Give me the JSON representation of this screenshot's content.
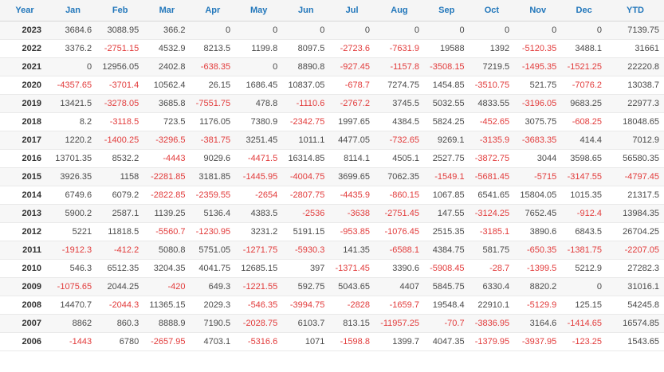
{
  "colors": {
    "header_text": "#2277bb",
    "negative_value": "#e23b3b",
    "positive_value": "#4a4a4a",
    "header_background": "#f5f5f5",
    "stripe_background": "#f7f7f7"
  },
  "table": {
    "columns": [
      "Year",
      "Jan",
      "Feb",
      "Mar",
      "Apr",
      "May",
      "Jun",
      "Jul",
      "Aug",
      "Sep",
      "Oct",
      "Nov",
      "Dec",
      "YTD"
    ],
    "rows": [
      {
        "year": "2023",
        "values": [
          "3684.6",
          "3088.95",
          "366.2",
          "0",
          "0",
          "0",
          "0",
          "0",
          "0",
          "0",
          "0",
          "0",
          "7139.75"
        ]
      },
      {
        "year": "2022",
        "values": [
          "3376.2",
          "-2751.15",
          "4532.9",
          "8213.5",
          "1199.8",
          "8097.5",
          "-2723.6",
          "-7631.9",
          "19588",
          "1392",
          "-5120.35",
          "3488.1",
          "31661"
        ]
      },
      {
        "year": "2021",
        "values": [
          "0",
          "12956.05",
          "2402.8",
          "-638.35",
          "0",
          "8890.8",
          "-927.45",
          "-1157.8",
          "-3508.15",
          "7219.5",
          "-1495.35",
          "-1521.25",
          "22220.8"
        ]
      },
      {
        "year": "2020",
        "values": [
          "-4357.65",
          "-3701.4",
          "10562.4",
          "26.15",
          "1686.45",
          "10837.05",
          "-678.7",
          "7274.75",
          "1454.85",
          "-3510.75",
          "521.75",
          "-7076.2",
          "13038.7"
        ]
      },
      {
        "year": "2019",
        "values": [
          "13421.5",
          "-3278.05",
          "3685.8",
          "-7551.75",
          "478.8",
          "-1110.6",
          "-2767.2",
          "3745.5",
          "5032.55",
          "4833.55",
          "-3196.05",
          "9683.25",
          "22977.3"
        ]
      },
      {
        "year": "2018",
        "values": [
          "8.2",
          "-3118.5",
          "723.5",
          "1176.05",
          "7380.9",
          "-2342.75",
          "1997.65",
          "4384.5",
          "5824.25",
          "-452.65",
          "3075.75",
          "-608.25",
          "18048.65"
        ]
      },
      {
        "year": "2017",
        "values": [
          "1220.2",
          "-1400.25",
          "-3296.5",
          "-381.75",
          "3251.45",
          "1011.1",
          "4477.05",
          "-732.65",
          "9269.1",
          "-3135.9",
          "-3683.35",
          "414.4",
          "7012.9"
        ]
      },
      {
        "year": "2016",
        "values": [
          "13701.35",
          "8532.2",
          "-4443",
          "9029.6",
          "-4471.5",
          "16314.85",
          "8114.1",
          "4505.1",
          "2527.75",
          "-3872.75",
          "3044",
          "3598.65",
          "56580.35"
        ]
      },
      {
        "year": "2015",
        "values": [
          "3926.35",
          "1158",
          "-2281.85",
          "3181.85",
          "-1445.95",
          "-4004.75",
          "3699.65",
          "7062.35",
          "-1549.1",
          "-5681.45",
          "-5715",
          "-3147.55",
          "-4797.45"
        ]
      },
      {
        "year": "2014",
        "values": [
          "6749.6",
          "6079.2",
          "-2822.85",
          "-2359.55",
          "-2654",
          "-2807.75",
          "-4435.9",
          "-860.15",
          "1067.85",
          "6541.65",
          "15804.05",
          "1015.35",
          "21317.5"
        ]
      },
      {
        "year": "2013",
        "values": [
          "5900.2",
          "2587.1",
          "1139.25",
          "5136.4",
          "4383.5",
          "-2536",
          "-3638",
          "-2751.45",
          "147.55",
          "-3124.25",
          "7652.45",
          "-912.4",
          "13984.35"
        ]
      },
      {
        "year": "2012",
        "values": [
          "5221",
          "11818.5",
          "-5560.7",
          "-1230.95",
          "3231.2",
          "5191.15",
          "-953.85",
          "-1076.45",
          "2515.35",
          "-3185.1",
          "3890.6",
          "6843.5",
          "26704.25"
        ]
      },
      {
        "year": "2011",
        "values": [
          "-1912.3",
          "-412.2",
          "5080.8",
          "5751.05",
          "-1271.75",
          "-5930.3",
          "141.35",
          "-6588.1",
          "4384.75",
          "581.75",
          "-650.35",
          "-1381.75",
          "-2207.05"
        ]
      },
      {
        "year": "2010",
        "values": [
          "546.3",
          "6512.35",
          "3204.35",
          "4041.75",
          "12685.15",
          "397",
          "-1371.45",
          "3390.6",
          "-5908.45",
          "-28.7",
          "-1399.5",
          "5212.9",
          "27282.3"
        ]
      },
      {
        "year": "2009",
        "values": [
          "-1075.65",
          "2044.25",
          "-420",
          "649.3",
          "-1221.55",
          "592.75",
          "5043.65",
          "4407",
          "5845.75",
          "6330.4",
          "8820.2",
          "0",
          "31016.1"
        ]
      },
      {
        "year": "2008",
        "values": [
          "14470.7",
          "-2044.3",
          "11365.15",
          "2029.3",
          "-546.35",
          "-3994.75",
          "-2828",
          "-1659.7",
          "19548.4",
          "22910.1",
          "-5129.9",
          "125.15",
          "54245.8"
        ]
      },
      {
        "year": "2007",
        "values": [
          "8862",
          "860.3",
          "8888.9",
          "7190.5",
          "-2028.75",
          "6103.7",
          "813.15",
          "-11957.25",
          "-70.7",
          "-3836.95",
          "3164.6",
          "-1414.65",
          "16574.85"
        ]
      },
      {
        "year": "2006",
        "values": [
          "-1443",
          "6780",
          "-2657.95",
          "4703.1",
          "-5316.6",
          "1071",
          "-1598.8",
          "1399.7",
          "4047.35",
          "-1379.95",
          "-3937.95",
          "-123.25",
          "1543.65"
        ]
      }
    ]
  }
}
